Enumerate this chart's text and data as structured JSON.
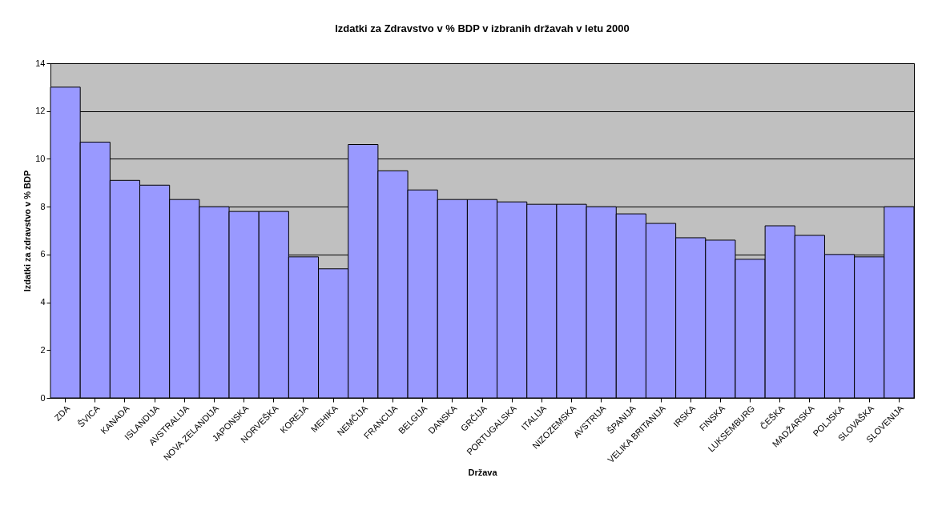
{
  "chart_data": {
    "type": "bar",
    "title": "Izdatki za Zdravstvo v % BDP v izbranih državah v letu 2000",
    "xlabel": "Država",
    "ylabel": "Izdatki za zdravstvo v % BDP",
    "categories": [
      "ZDA",
      "ŠVICA",
      "KANADA",
      "ISLANDIJA",
      "AVSTRALIJA",
      "NOVA ZELANDIJA",
      "JAPONSKA",
      "NORVEŠKA",
      "KOREJA",
      "MEHIKA",
      "NEMČIJA",
      "FRANCIJA",
      "BELGIJA",
      "DANSKA",
      "GRČIJA",
      "PORTUGALSKA",
      "ITALIJA",
      "NIZOZEMSKA",
      "AVSTRIJA",
      "ŠPANIJA",
      "VELIKA BRITANIJA",
      "IRSKA",
      "FINSKA",
      "LUKSEMBURG",
      "ČEŠKA",
      "MADŽARSKA",
      "POLJSKA",
      "SLOVAŠKA",
      "SLOVENIJA"
    ],
    "values": [
      13.0,
      10.7,
      9.1,
      8.9,
      8.3,
      8.0,
      7.8,
      7.8,
      5.9,
      5.4,
      10.6,
      9.5,
      8.7,
      8.3,
      8.3,
      8.2,
      8.1,
      8.1,
      8.0,
      7.7,
      7.3,
      6.7,
      6.6,
      5.8,
      7.2,
      6.8,
      6.0,
      5.9,
      8.0
    ],
    "color": "#9999ff",
    "ylim": [
      0,
      14
    ],
    "yticks": [
      0,
      2,
      4,
      6,
      8,
      10,
      12,
      14
    ],
    "grid": "y"
  }
}
